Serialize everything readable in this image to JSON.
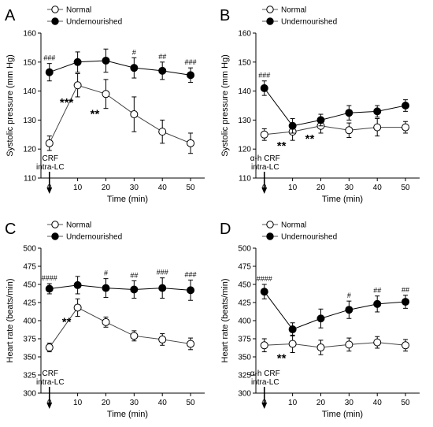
{
  "chart_data": [
    {
      "panel": "A",
      "type": "line",
      "xlabel": "Time (min)",
      "ylabel": "Systolic pressure (mm Hg)",
      "x": [
        0,
        10,
        20,
        30,
        40,
        50
      ],
      "xticks": [
        "0",
        "10",
        "20",
        "30",
        "40",
        "50"
      ],
      "ylim": [
        110,
        160
      ],
      "yticks": [
        110,
        120,
        130,
        140,
        150,
        160
      ],
      "series": [
        {
          "name": "Normal",
          "marker": "open-circle",
          "values": [
            122,
            142,
            139,
            132,
            126,
            122
          ],
          "errors": [
            2.5,
            4,
            5,
            6,
            4,
            3.5
          ]
        },
        {
          "name": "Undernourished",
          "marker": "filled-circle",
          "values": [
            146.5,
            150,
            150.5,
            148,
            147,
            145.5
          ],
          "errors": [
            3,
            3.5,
            4,
            3.5,
            3,
            2.5
          ]
        }
      ],
      "stars": [
        {
          "x": 10,
          "label": "***"
        },
        {
          "x": 20,
          "label": "**"
        }
      ],
      "hashes": [
        {
          "x": 0,
          "label": "###"
        },
        {
          "x": 30,
          "label": "#"
        },
        {
          "x": 40,
          "label": "##"
        },
        {
          "x": 50,
          "label": "###"
        }
      ],
      "injection_label": [
        "CRF",
        "intra-LC"
      ]
    },
    {
      "panel": "B",
      "type": "line",
      "xlabel": "Time (min)",
      "ylabel": "Systolic pressure (mm Hg)",
      "x": [
        0,
        10,
        20,
        30,
        40,
        50
      ],
      "xticks": [
        "0",
        "10",
        "20",
        "30",
        "40",
        "50"
      ],
      "ylim": [
        110,
        160
      ],
      "yticks": [
        110,
        120,
        130,
        140,
        150,
        160
      ],
      "series": [
        {
          "name": "Normal",
          "marker": "open-circle",
          "values": [
            125,
            126,
            128,
            126.5,
            127.5,
            127.5
          ],
          "errors": [
            2,
            3,
            2.5,
            2.5,
            3,
            2
          ]
        },
        {
          "name": "Undernourished",
          "marker": "filled-circle",
          "values": [
            141,
            128,
            130,
            132.5,
            133,
            135
          ],
          "errors": [
            2.5,
            2.5,
            2,
            2.5,
            2,
            2
          ]
        }
      ],
      "stars": [
        {
          "x": 10,
          "label": "**"
        },
        {
          "x": 20,
          "label": "**"
        }
      ],
      "hashes": [
        {
          "x": 0,
          "label": "###"
        }
      ],
      "injection_label": [
        "α-h CRF",
        "intra-LC"
      ]
    },
    {
      "panel": "C",
      "type": "line",
      "xlabel": "Time (min)",
      "ylabel": "Heart rate (beats/min)",
      "x": [
        0,
        10,
        20,
        30,
        40,
        50
      ],
      "xticks": [
        "0",
        "10",
        "20",
        "30",
        "40",
        "50"
      ],
      "ylim": [
        300,
        500
      ],
      "yticks": [
        300,
        325,
        350,
        375,
        400,
        425,
        450,
        475,
        500
      ],
      "series": [
        {
          "name": "Normal",
          "marker": "open-circle",
          "values": [
            363,
            418,
            398,
            379,
            374,
            368
          ],
          "errors": [
            6,
            12,
            7,
            7,
            8,
            8
          ]
        },
        {
          "name": "Undernourished",
          "marker": "filled-circle",
          "values": [
            444,
            449,
            445,
            443,
            445,
            442
          ],
          "errors": [
            7,
            12,
            13,
            12,
            14,
            14
          ]
        }
      ],
      "stars": [
        {
          "x": 10,
          "label": "**"
        }
      ],
      "hashes": [
        {
          "x": 0,
          "label": "####"
        },
        {
          "x": 20,
          "label": "#"
        },
        {
          "x": 30,
          "label": "##"
        },
        {
          "x": 40,
          "label": "###"
        },
        {
          "x": 50,
          "label": "###"
        }
      ],
      "injection_label": [
        "CRF",
        "intra-LC"
      ]
    },
    {
      "panel": "D",
      "type": "line",
      "xlabel": "Time (min)",
      "ylabel": "Heart rate (beats/min)",
      "x": [
        0,
        10,
        20,
        30,
        40,
        50
      ],
      "xticks": [
        "0",
        "10",
        "20",
        "30",
        "40",
        "50"
      ],
      "ylim": [
        300,
        500
      ],
      "yticks": [
        300,
        325,
        350,
        375,
        400,
        425,
        450,
        475,
        500
      ],
      "series": [
        {
          "name": "Normal",
          "marker": "open-circle",
          "values": [
            366,
            368,
            363,
            367,
            370,
            366
          ],
          "errors": [
            9,
            12,
            10,
            9,
            8,
            8
          ]
        },
        {
          "name": "Undernourished",
          "marker": "filled-circle",
          "values": [
            440,
            388,
            403,
            415,
            423,
            426
          ],
          "errors": [
            10,
            9,
            13,
            12,
            11,
            9
          ]
        }
      ],
      "stars": [
        {
          "x": 10,
          "label": "**"
        }
      ],
      "hashes": [
        {
          "x": 0,
          "label": "####"
        },
        {
          "x": 30,
          "label": "#"
        },
        {
          "x": 40,
          "label": "##"
        },
        {
          "x": 50,
          "label": "##"
        }
      ],
      "injection_label": [
        "α-h CRF",
        "intra-LC"
      ]
    }
  ]
}
